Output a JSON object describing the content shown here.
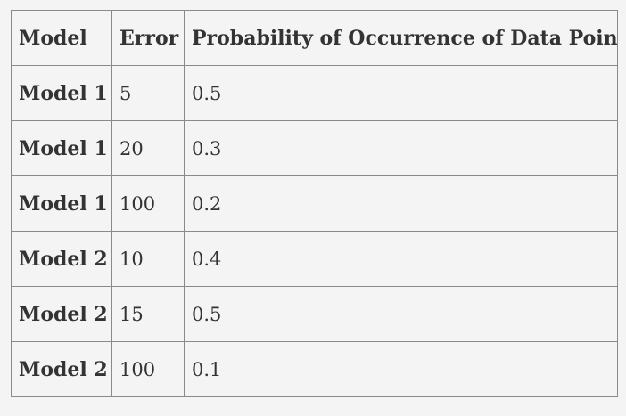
{
  "table": {
    "headers": [
      "Model",
      "Error",
      "Probability of Occurrence of Data Point"
    ],
    "rows": [
      [
        "Model 1",
        "5",
        "0.5"
      ],
      [
        "Model 1",
        "20",
        "0.3"
      ],
      [
        "Model 1",
        "100",
        "0.2"
      ],
      [
        "Model 2",
        "10",
        "0.4"
      ],
      [
        "Model 2",
        "15",
        "0.5"
      ],
      [
        "Model 2",
        "100",
        "0.1"
      ]
    ]
  },
  "colors": {
    "background": "#f4f4f4",
    "border": "#8a8a8a",
    "text": "#333333"
  }
}
